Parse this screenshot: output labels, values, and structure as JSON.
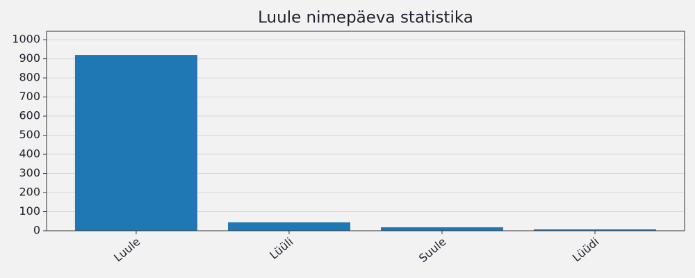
{
  "chart_data": {
    "type": "bar",
    "title": "Luule nimepäeva statistika",
    "categories": [
      "Luule",
      "Lüüli",
      "Suule",
      "Lüüdi"
    ],
    "values": [
      920,
      44,
      18,
      7
    ],
    "color": "#1f77b4",
    "ylim": [
      0,
      1044
    ],
    "yticks": [
      0,
      100,
      200,
      300,
      400,
      500,
      600,
      700,
      800,
      900,
      1000
    ],
    "grid": true
  }
}
